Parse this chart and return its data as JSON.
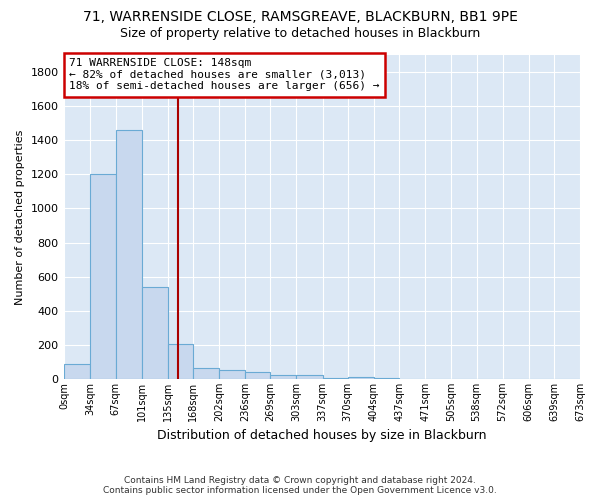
{
  "title": "71, WARRENSIDE CLOSE, RAMSGREAVE, BLACKBURN, BB1 9PE",
  "subtitle": "Size of property relative to detached houses in Blackburn",
  "xlabel": "Distribution of detached houses by size in Blackburn",
  "ylabel": "Number of detached properties",
  "footer_line1": "Contains HM Land Registry data © Crown copyright and database right 2024.",
  "footer_line2": "Contains public sector information licensed under the Open Government Licence v3.0.",
  "bin_edges": [
    0,
    34,
    67,
    101,
    135,
    168,
    202,
    236,
    269,
    303,
    337,
    370,
    404,
    437,
    471,
    505,
    538,
    572,
    606,
    639,
    673
  ],
  "bin_labels": [
    "0sqm",
    "34sqm",
    "67sqm",
    "101sqm",
    "135sqm",
    "168sqm",
    "202sqm",
    "236sqm",
    "269sqm",
    "303sqm",
    "337sqm",
    "370sqm",
    "404sqm",
    "437sqm",
    "471sqm",
    "505sqm",
    "538sqm",
    "572sqm",
    "606sqm",
    "639sqm",
    "673sqm"
  ],
  "bar_heights": [
    90,
    1200,
    1460,
    540,
    205,
    65,
    50,
    40,
    25,
    20,
    5,
    10,
    5,
    0,
    0,
    0,
    0,
    0,
    0,
    0
  ],
  "bar_color": "#c8d8ee",
  "bar_edge_color": "#6aaad4",
  "plot_bg_color": "#dce8f5",
  "figure_bg_color": "#ffffff",
  "grid_color": "#ffffff",
  "property_line_x": 148,
  "property_line_color": "#aa0000",
  "annotation_text": "71 WARRENSIDE CLOSE: 148sqm\n← 82% of detached houses are smaller (3,013)\n18% of semi-detached houses are larger (656) →",
  "annotation_box_color": "#ffffff",
  "annotation_box_edge_color": "#cc0000",
  "ylim": [
    0,
    1900
  ],
  "yticks": [
    0,
    200,
    400,
    600,
    800,
    1000,
    1200,
    1400,
    1600,
    1800
  ]
}
